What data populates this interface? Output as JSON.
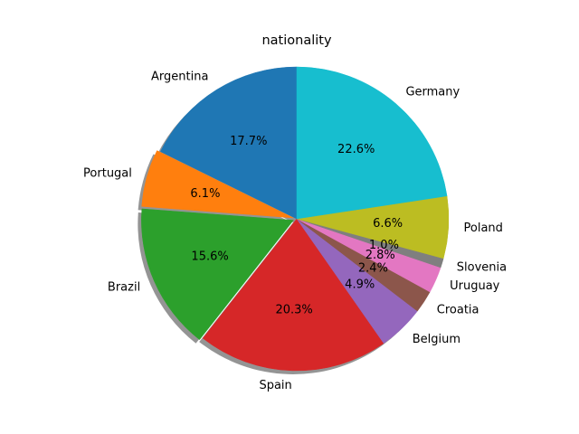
{
  "chart_data": {
    "type": "pie",
    "title": "nationality",
    "labels": [
      "Argentina",
      "Portugal",
      "Brazil",
      "Spain",
      "Belgium",
      "Croatia",
      "Uruguay",
      "Slovenia",
      "Poland",
      "Germany"
    ],
    "values": [
      17.7,
      6.1,
      15.6,
      20.3,
      4.9,
      2.4,
      2.8,
      1.0,
      6.6,
      22.6
    ],
    "value_labels": [
      "17.7%",
      "6.1%",
      "15.6%",
      "20.3%",
      "4.9%",
      "2.4%",
      "2.8%",
      "1.0%",
      "6.6%",
      "22.6%"
    ],
    "colors": [
      "#1f77b4",
      "#ff7f0e",
      "#2ca02c",
      "#d62728",
      "#9467bd",
      "#8c564b",
      "#e377c2",
      "#7f7f7f",
      "#bcbd22",
      "#17becf"
    ],
    "start_angle": 90,
    "direction": "counterclockwise",
    "shadow": true,
    "exploded": [
      "Portugal",
      "Brazil"
    ]
  }
}
